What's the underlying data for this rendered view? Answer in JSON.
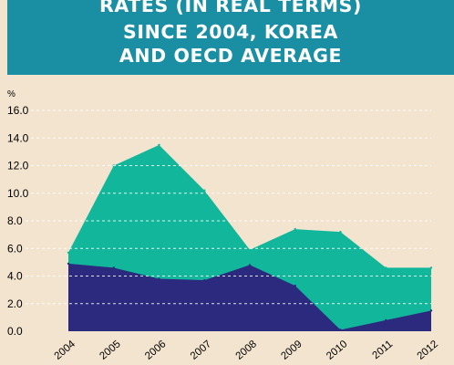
{
  "header": {
    "title_lines": [
      "RATES (IN REAL TERMS)",
      "SINCE 2004, KOREA",
      "AND OECD AVERAGE"
    ]
  },
  "chart_data": {
    "type": "area",
    "y_unit_label": "%",
    "x": [
      "2004",
      "2005",
      "2006",
      "2007",
      "2008",
      "2009",
      "2010",
      "2011",
      "2012"
    ],
    "ylim": [
      0,
      16
    ],
    "yticks": [
      "0.0",
      "2.0",
      "4.0",
      "6.0",
      "8.0",
      "10.0",
      "12.0",
      "14.0",
      "16.0"
    ],
    "grid": "dashed horizontal",
    "series": [
      {
        "values": [
          5.7,
          12.0,
          13.5,
          10.2,
          5.9,
          7.4,
          7.2,
          4.6,
          4.6
        ],
        "color": "#12b79b"
      },
      {
        "values": [
          4.9,
          4.6,
          3.8,
          3.7,
          4.8,
          3.3,
          0.1,
          0.8,
          1.5
        ],
        "color": "#2c2a7e"
      }
    ]
  },
  "colors": {
    "header_bg": "#1a8fa4",
    "page_bg": "#f3e4cf"
  }
}
